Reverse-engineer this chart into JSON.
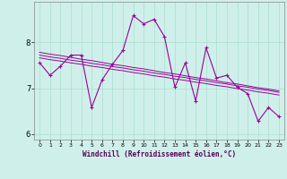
{
  "title": "",
  "xlabel": "Windchill (Refroidissement éolien,°C)",
  "ylabel": "",
  "bg_color": "#cff0ea",
  "line_color": "#990099",
  "grid_color": "#aaddcc",
  "x_hours": [
    0,
    1,
    2,
    3,
    4,
    5,
    6,
    7,
    8,
    9,
    10,
    11,
    12,
    13,
    14,
    15,
    16,
    17,
    18,
    19,
    20,
    21,
    22,
    23
  ],
  "y_main": [
    7.55,
    7.28,
    7.48,
    7.72,
    7.72,
    6.58,
    7.18,
    7.52,
    7.82,
    8.58,
    8.4,
    8.5,
    8.12,
    7.02,
    7.55,
    6.72,
    7.88,
    7.22,
    7.28,
    7.02,
    6.88,
    6.28,
    6.58,
    6.38
  ],
  "y_trend1": [
    7.72,
    7.68,
    7.65,
    7.61,
    7.58,
    7.54,
    7.51,
    7.47,
    7.44,
    7.4,
    7.37,
    7.33,
    7.3,
    7.26,
    7.23,
    7.19,
    7.16,
    7.12,
    7.09,
    7.05,
    7.02,
    6.98,
    6.95,
    6.91
  ],
  "y_trend2": [
    7.78,
    7.74,
    7.71,
    7.67,
    7.63,
    7.6,
    7.56,
    7.52,
    7.49,
    7.45,
    7.42,
    7.38,
    7.34,
    7.31,
    7.27,
    7.23,
    7.2,
    7.16,
    7.12,
    7.09,
    7.05,
    7.01,
    6.98,
    6.94
  ],
  "y_trend3": [
    7.66,
    7.62,
    7.59,
    7.55,
    7.52,
    7.48,
    7.45,
    7.41,
    7.38,
    7.34,
    7.31,
    7.27,
    7.24,
    7.2,
    7.17,
    7.13,
    7.1,
    7.06,
    7.03,
    6.99,
    6.96,
    6.92,
    6.89,
    6.85
  ],
  "ylim": [
    5.88,
    8.88
  ],
  "yticks": [
    6,
    7,
    8
  ],
  "xticks": [
    0,
    1,
    2,
    3,
    4,
    5,
    6,
    7,
    8,
    9,
    10,
    11,
    12,
    13,
    14,
    15,
    16,
    17,
    18,
    19,
    20,
    21,
    22,
    23
  ],
  "figsize": [
    3.2,
    2.0
  ],
  "dpi": 100
}
